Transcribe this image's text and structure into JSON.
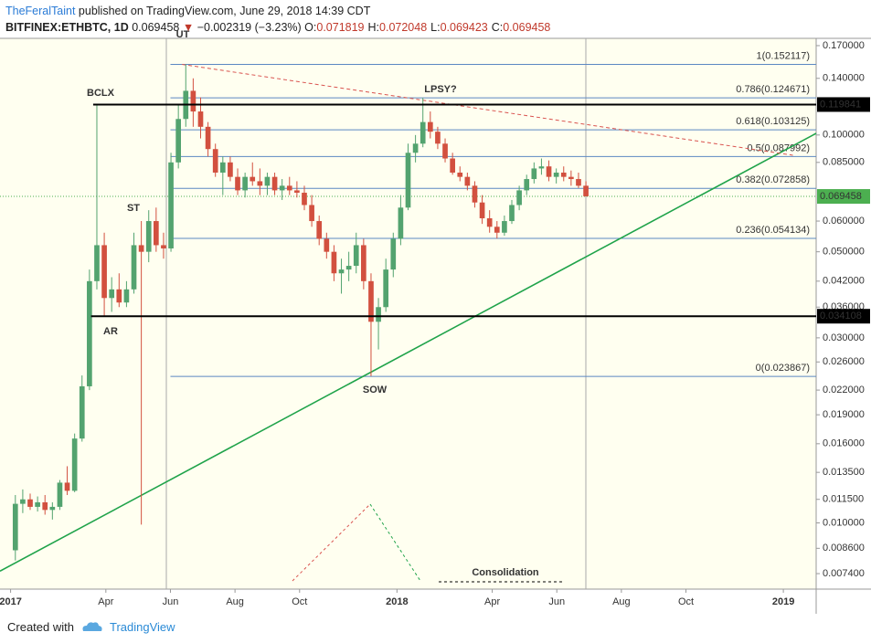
{
  "header": {
    "author": "TheFeralTaint",
    "published": "published on TradingView.com, June 29, 2018 14:39 CDT",
    "symbol": "BITFINEX:ETHBTC, 1D",
    "last": "0.069458",
    "arrow": "▼",
    "change": "−0.002319 (−3.23%)",
    "ohlc": [
      {
        "label": "O:",
        "value": "0.071819"
      },
      {
        "label": "H:",
        "value": "0.072048"
      },
      {
        "label": "L:",
        "value": "0.069423"
      },
      {
        "label": "C:",
        "value": "0.069458"
      }
    ]
  },
  "footer": {
    "created": "Created with",
    "brand": "TradingView"
  },
  "chart_data": {
    "type": "candlestick",
    "log_scale": true,
    "up_color": "#53a36f",
    "down_color": "#d2503f",
    "xlim": [
      "2016-12-22",
      "2019-02-01"
    ],
    "xticks": [
      {
        "value": "2017-01-01",
        "label": "2017"
      },
      {
        "value": "2017-04-01",
        "label": "Apr"
      },
      {
        "value": "2017-06-01",
        "label": "Jun"
      },
      {
        "value": "2017-08-01",
        "label": "Aug"
      },
      {
        "value": "2017-10-01",
        "label": "Oct"
      },
      {
        "value": "2018-01-01",
        "label": "2018"
      },
      {
        "value": "2018-04-01",
        "label": "Apr"
      },
      {
        "value": "2018-06-01",
        "label": "Jun"
      },
      {
        "value": "2018-08-01",
        "label": "Aug"
      },
      {
        "value": "2018-10-01",
        "label": "Oct"
      },
      {
        "value": "2019-01-01",
        "label": "2019"
      }
    ],
    "ylim": [
      0.00675,
      0.1775
    ],
    "yticks": [
      {
        "value": 0.17,
        "label": "0.170000"
      },
      {
        "value": 0.14,
        "label": "0.140000"
      },
      {
        "value": 0.1,
        "label": "0.100000"
      },
      {
        "value": 0.085,
        "label": "0.085000"
      },
      {
        "value": 0.06,
        "label": "0.060000"
      },
      {
        "value": 0.05,
        "label": "0.050000"
      },
      {
        "value": 0.042,
        "label": "0.042000"
      },
      {
        "value": 0.036,
        "label": "0.036000"
      },
      {
        "value": 0.03,
        "label": "0.030000"
      },
      {
        "value": 0.026,
        "label": "0.026000"
      },
      {
        "value": 0.022,
        "label": "0.022000"
      },
      {
        "value": 0.019,
        "label": "0.019000"
      },
      {
        "value": 0.016,
        "label": "0.016000"
      },
      {
        "value": 0.0135,
        "label": "0.013500"
      },
      {
        "value": 0.0115,
        "label": "0.011500"
      },
      {
        "value": 0.01,
        "label": "0.010000"
      },
      {
        "value": 0.0086,
        "label": "0.008600"
      },
      {
        "value": 0.0074,
        "label": "0.007400"
      }
    ],
    "x": [
      "2017-01-02",
      "2017-01-09",
      "2017-01-16",
      "2017-01-23",
      "2017-01-30",
      "2017-02-06",
      "2017-02-13",
      "2017-02-20",
      "2017-02-27",
      "2017-03-06",
      "2017-03-13",
      "2017-03-20",
      "2017-03-27",
      "2017-04-03",
      "2017-04-10",
      "2017-04-17",
      "2017-04-24",
      "2017-05-01",
      "2017-05-08",
      "2017-05-15",
      "2017-05-22",
      "2017-05-29",
      "2017-06-05",
      "2017-06-12",
      "2017-06-19",
      "2017-06-26",
      "2017-07-03",
      "2017-07-10",
      "2017-07-17",
      "2017-07-24",
      "2017-07-31",
      "2017-08-07",
      "2017-08-14",
      "2017-08-21",
      "2017-08-28",
      "2017-09-04",
      "2017-09-11",
      "2017-09-18",
      "2017-09-25",
      "2017-10-02",
      "2017-10-09",
      "2017-10-16",
      "2017-10-23",
      "2017-10-30",
      "2017-11-06",
      "2017-11-13",
      "2017-11-20",
      "2017-11-27",
      "2017-12-04",
      "2017-12-11",
      "2017-12-18",
      "2017-12-25",
      "2018-01-01",
      "2018-01-08",
      "2018-01-15",
      "2018-01-22",
      "2018-01-29",
      "2018-02-05",
      "2018-02-12",
      "2018-02-19",
      "2018-02-26",
      "2018-03-05",
      "2018-03-12",
      "2018-03-19",
      "2018-03-26",
      "2018-04-02",
      "2018-04-09",
      "2018-04-16",
      "2018-04-23",
      "2018-04-30",
      "2018-05-07",
      "2018-05-14",
      "2018-05-21",
      "2018-05-28",
      "2018-06-04",
      "2018-06-11",
      "2018-06-18",
      "2018-06-25"
    ],
    "open": [
      0.0085,
      0.0112,
      0.0115,
      0.011,
      0.0113,
      0.0108,
      0.011,
      0.0127,
      0.0121,
      0.0165,
      0.0225,
      0.042,
      0.052,
      0.038,
      0.04,
      0.037,
      0.04,
      0.052,
      0.05,
      0.06,
      0.052,
      0.051,
      0.085,
      0.11,
      0.13,
      0.115,
      0.105,
      0.092,
      0.08,
      0.085,
      0.078,
      0.072,
      0.078,
      0.076,
      0.074,
      0.078,
      0.072,
      0.074,
      0.072,
      0.071,
      0.066,
      0.06,
      0.054,
      0.05,
      0.044,
      0.045,
      0.046,
      0.052,
      0.042,
      0.033,
      0.036,
      0.045,
      0.054,
      0.065,
      0.09,
      0.095,
      0.108,
      0.102,
      0.095,
      0.087,
      0.08,
      0.078,
      0.074,
      0.067,
      0.061,
      0.058,
      0.056,
      0.06,
      0.066,
      0.072,
      0.077,
      0.082,
      0.083,
      0.078,
      0.08,
      0.078,
      0.077,
      0.074
    ],
    "high": [
      0.0118,
      0.0122,
      0.0119,
      0.0117,
      0.0118,
      0.0113,
      0.0129,
      0.014,
      0.017,
      0.024,
      0.045,
      0.1198,
      0.056,
      0.043,
      0.044,
      0.042,
      0.056,
      0.06,
      0.064,
      0.065,
      0.056,
      0.09,
      0.12,
      0.1521,
      0.14,
      0.125,
      0.108,
      0.095,
      0.088,
      0.088,
      0.082,
      0.08,
      0.085,
      0.082,
      0.08,
      0.08,
      0.077,
      0.078,
      0.076,
      0.074,
      0.07,
      0.062,
      0.056,
      0.052,
      0.048,
      0.05,
      0.056,
      0.054,
      0.044,
      0.038,
      0.048,
      0.056,
      0.07,
      0.095,
      0.1,
      0.1247,
      0.115,
      0.105,
      0.098,
      0.09,
      0.083,
      0.08,
      0.076,
      0.07,
      0.064,
      0.06,
      0.062,
      0.068,
      0.074,
      0.079,
      0.085,
      0.087,
      0.086,
      0.082,
      0.083,
      0.081,
      0.08,
      0.076
    ],
    "low": [
      0.008,
      0.0106,
      0.0108,
      0.0107,
      0.0105,
      0.0102,
      0.0108,
      0.0118,
      0.012,
      0.0162,
      0.022,
      0.04,
      0.034,
      0.035,
      0.036,
      0.036,
      0.039,
      0.0099,
      0.047,
      0.05,
      0.048,
      0.05,
      0.082,
      0.105,
      0.105,
      0.098,
      0.088,
      0.078,
      0.07,
      0.076,
      0.07,
      0.069,
      0.074,
      0.07,
      0.07,
      0.07,
      0.068,
      0.07,
      0.069,
      0.064,
      0.058,
      0.052,
      0.048,
      0.042,
      0.039,
      0.042,
      0.044,
      0.04,
      0.0239,
      0.028,
      0.035,
      0.043,
      0.052,
      0.064,
      0.085,
      0.093,
      0.098,
      0.092,
      0.085,
      0.079,
      0.076,
      0.072,
      0.065,
      0.059,
      0.056,
      0.0541,
      0.055,
      0.059,
      0.064,
      0.07,
      0.075,
      0.079,
      0.076,
      0.075,
      0.076,
      0.074,
      0.073,
      0.0694
    ],
    "close": [
      0.0112,
      0.0115,
      0.011,
      0.0113,
      0.0108,
      0.011,
      0.0127,
      0.0121,
      0.0165,
      0.0225,
      0.042,
      0.052,
      0.038,
      0.04,
      0.037,
      0.04,
      0.052,
      0.05,
      0.06,
      0.052,
      0.051,
      0.085,
      0.11,
      0.13,
      0.115,
      0.105,
      0.092,
      0.08,
      0.085,
      0.078,
      0.072,
      0.078,
      0.076,
      0.074,
      0.078,
      0.072,
      0.074,
      0.072,
      0.071,
      0.066,
      0.06,
      0.054,
      0.05,
      0.044,
      0.045,
      0.046,
      0.052,
      0.042,
      0.033,
      0.036,
      0.045,
      0.054,
      0.065,
      0.09,
      0.095,
      0.108,
      0.102,
      0.095,
      0.087,
      0.08,
      0.078,
      0.074,
      0.067,
      0.061,
      0.058,
      0.056,
      0.06,
      0.066,
      0.072,
      0.077,
      0.082,
      0.083,
      0.078,
      0.08,
      0.078,
      0.077,
      0.074,
      0.0695
    ],
    "fib_start": "2017-06-01",
    "fib_color": "#5b88c2",
    "fib_levels": [
      {
        "label": "1(0.152117)",
        "value": 0.152117
      },
      {
        "label": "0.786(0.124671)",
        "value": 0.124671
      },
      {
        "label": "0.618(0.103125)",
        "value": 0.103125
      },
      {
        "label": "0.5(0.087992)",
        "value": 0.087992
      },
      {
        "label": "0.382(0.072858)",
        "value": 0.072858
      },
      {
        "label": "0.236(0.054134)",
        "value": 0.054134
      },
      {
        "label": "0(0.023867)",
        "value": 0.023867
      }
    ],
    "price_lines": [
      {
        "label": "0.119841",
        "value": 0.119841,
        "start": "2017-03-20",
        "color": "#000000"
      },
      {
        "label": "0.034108",
        "value": 0.034108,
        "start": "2017-03-18",
        "color": "#000000"
      }
    ],
    "last_price": {
      "label": "0.069458",
      "value": 0.069458,
      "color": "#4caf50"
    },
    "trendlines": [
      {
        "color": "#1fa34a",
        "style": "solid",
        "points": [
          [
            "2016-12-22",
            0.00751
          ],
          [
            "2019-02-01",
            0.101
          ]
        ]
      },
      {
        "color": "#d9534f",
        "style": "dashed",
        "points": [
          [
            "2017-06-12",
            0.1521
          ],
          [
            "2019-01-10",
            0.0887
          ]
        ]
      }
    ],
    "annotations": [
      "BCLX",
      "ST",
      "UT",
      "LPSY?",
      "AR",
      "SOW",
      "Consolidation"
    ]
  }
}
